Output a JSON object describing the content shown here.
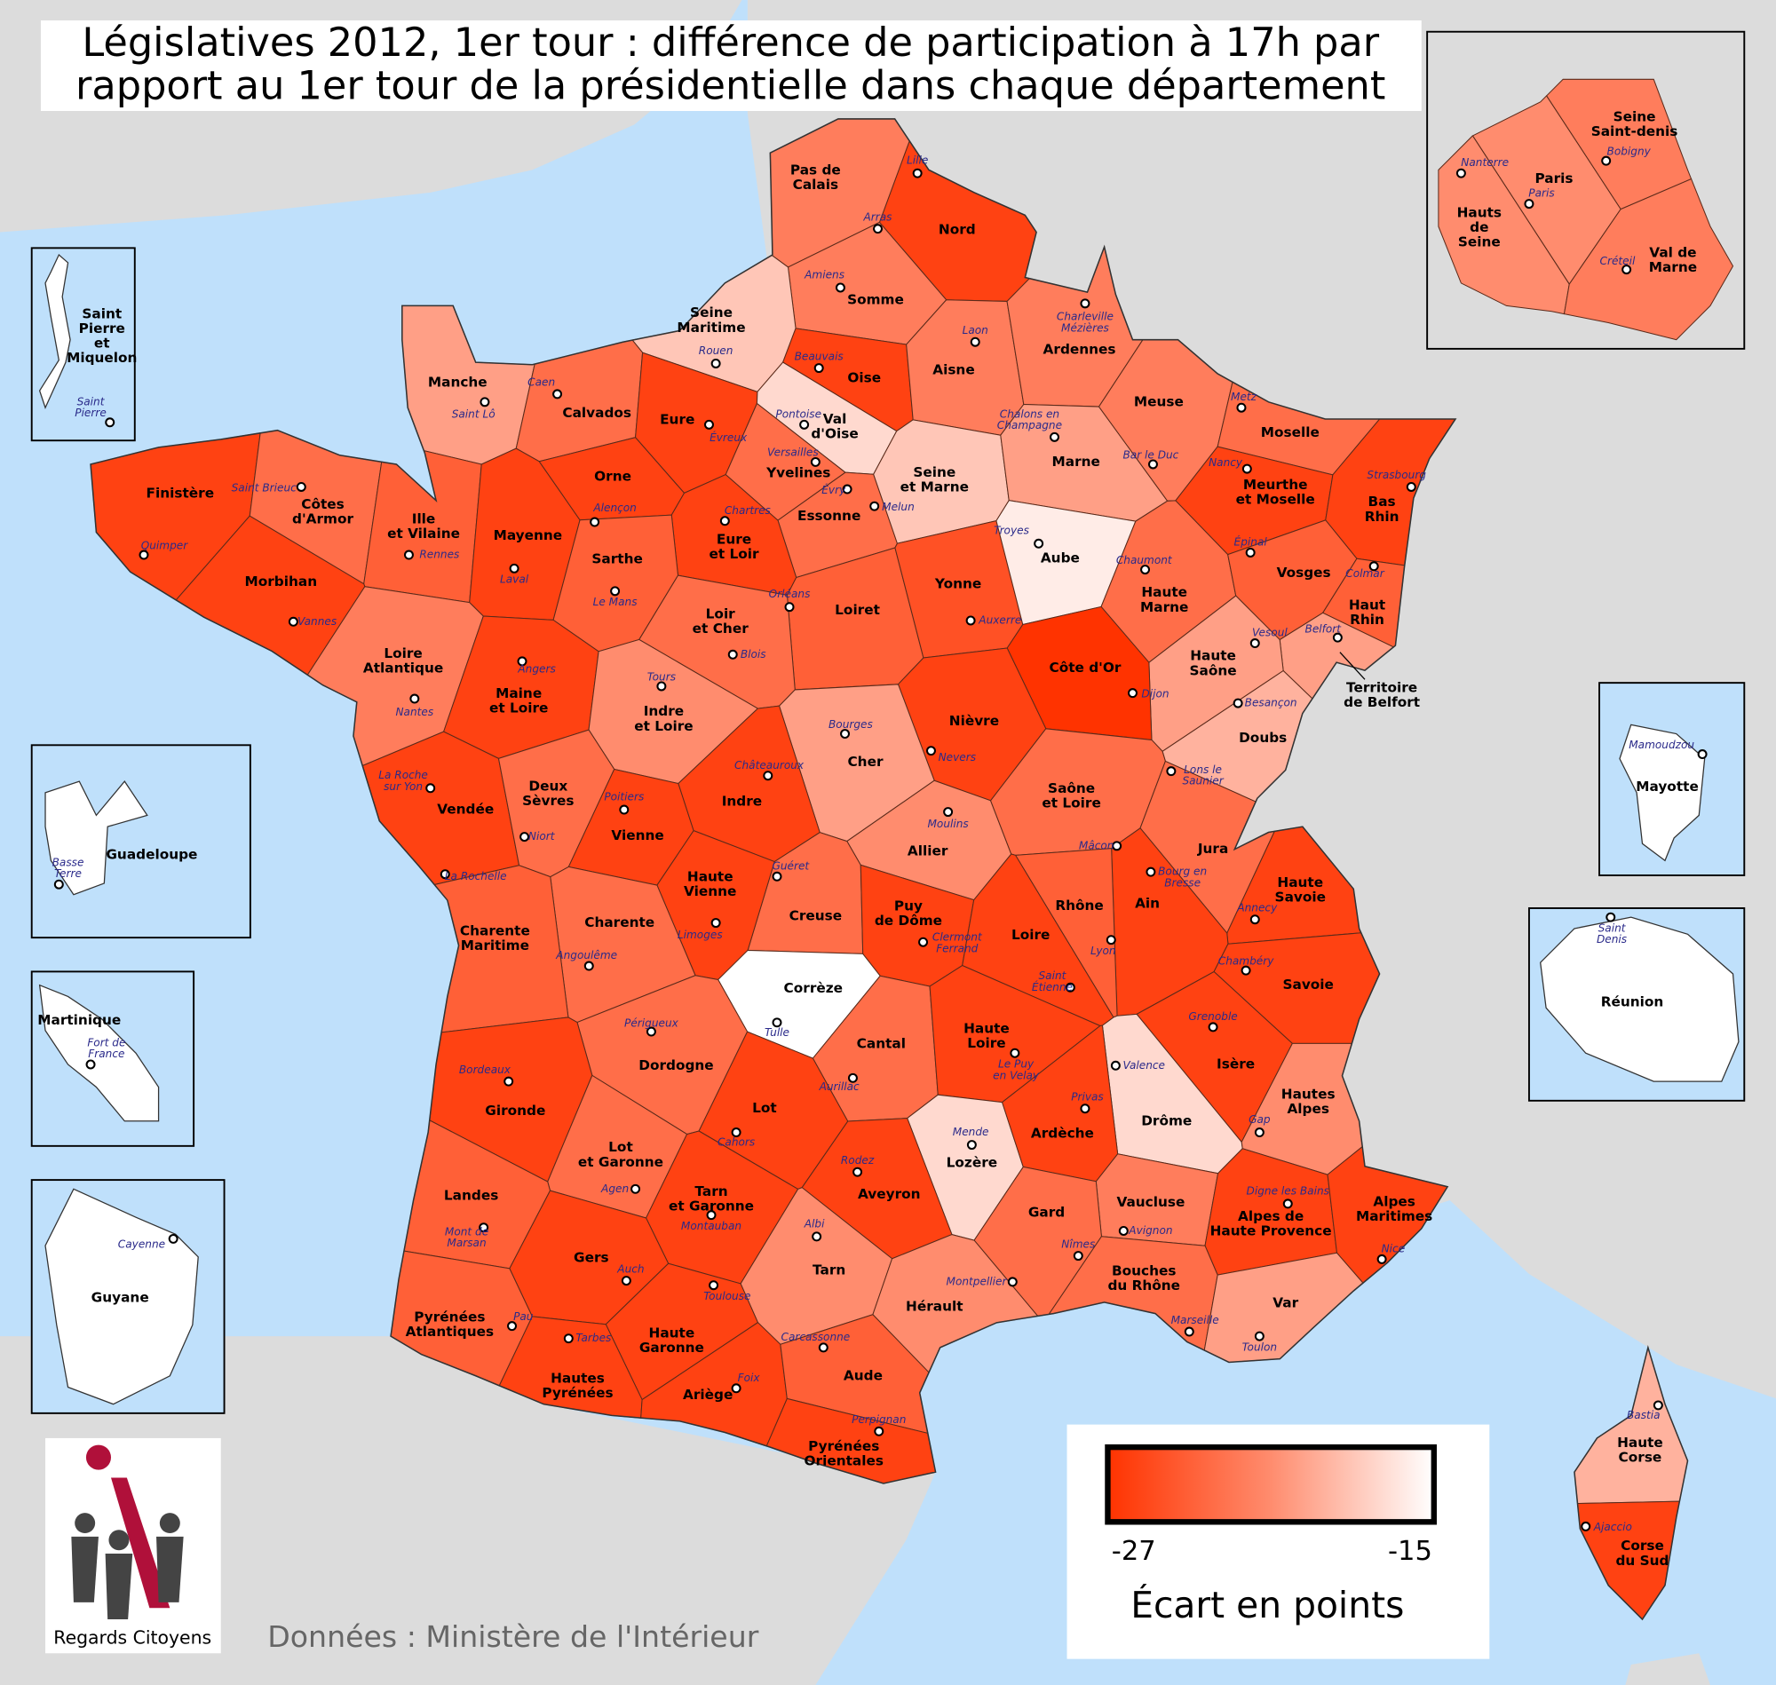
{
  "title": [
    "Législatives 2012, 1er tour : différence de participation à 17h par",
    "rapport au 1er tour de la présidentielle dans chaque département"
  ],
  "legend": {
    "title": "Écart en points",
    "min": -27,
    "max": -15,
    "colors": [
      "#ff3300",
      "#ff8c6e",
      "#ffffff"
    ]
  },
  "source": "Données : Ministère de l'Intérieur",
  "logo": "Regards Citoyens",
  "departments": [
    {
      "name": [
        "Nord"
      ],
      "prefecture": [
        "Lille"
      ],
      "value": -26
    },
    {
      "name": [
        "Pas de",
        "Calais"
      ],
      "prefecture": [
        "Arras"
      ],
      "value": -22
    },
    {
      "name": [
        "Somme"
      ],
      "prefecture": [
        "Amiens"
      ],
      "value": -22
    },
    {
      "name": [
        "Seine",
        "Maritime"
      ],
      "prefecture": [
        "Rouen"
      ],
      "value": -18
    },
    {
      "name": [
        "Oise"
      ],
      "prefecture": [
        "Beauvais"
      ],
      "value": -26
    },
    {
      "name": [
        "Aisne"
      ],
      "prefecture": [
        "Laon"
      ],
      "value": -22
    },
    {
      "name": [
        "Ardennes"
      ],
      "prefecture": [
        "Charleville",
        "Mézières"
      ],
      "value": -22
    },
    {
      "name": [
        "Manche"
      ],
      "prefecture": [
        "Saint Lô"
      ],
      "value": -20
    },
    {
      "name": [
        "Calvados"
      ],
      "prefecture": [
        "Caen"
      ],
      "value": -23
    },
    {
      "name": [
        "Eure"
      ],
      "prefecture": [
        "Évreux"
      ],
      "value": -26
    },
    {
      "name": [
        "Val",
        "d'Oise"
      ],
      "prefecture": [
        "Pontoise"
      ],
      "value": -17
    },
    {
      "name": [
        "Yvelines"
      ],
      "prefecture": [
        "Versailles"
      ],
      "value": -23
    },
    {
      "name": [
        "Essonne"
      ],
      "prefecture": [
        "Évry"
      ],
      "value": -23
    },
    {
      "name": [
        "Seine",
        "et Marne"
      ],
      "prefecture": [
        "Melun"
      ],
      "value": -18
    },
    {
      "name": [
        "Marne"
      ],
      "prefecture": [
        "Chalons en",
        "Champagne"
      ],
      "value": -20
    },
    {
      "name": [
        "Meuse"
      ],
      "prefecture": [
        "Bar le Duc"
      ],
      "value": -22
    },
    {
      "name": [
        "Moselle"
      ],
      "prefecture": [
        "Metz"
      ],
      "value": -23
    },
    {
      "name": [
        "Meurthe",
        "et Moselle"
      ],
      "prefecture": [
        "Nancy"
      ],
      "value": -26
    },
    {
      "name": [
        "Bas",
        "Rhin"
      ],
      "prefecture": [
        "Strasbourg"
      ],
      "value": -26
    },
    {
      "name": [
        "Finistère"
      ],
      "prefecture": [
        "Quimper"
      ],
      "value": -26
    },
    {
      "name": [
        "Côtes",
        "d'Armor"
      ],
      "prefecture": [
        "Saint Brieuc"
      ],
      "value": -23
    },
    {
      "name": [
        "Ille",
        "et Vilaine"
      ],
      "prefecture": [
        "Rennes"
      ],
      "value": -24
    },
    {
      "name": [
        "Mayenne"
      ],
      "prefecture": [
        "Laval"
      ],
      "value": -26
    },
    {
      "name": [
        "Orne"
      ],
      "prefecture": [
        "Alençon"
      ],
      "value": -26
    },
    {
      "name": [
        "Eure",
        "et Loir"
      ],
      "prefecture": [
        "Chartres"
      ],
      "value": -26
    },
    {
      "name": [
        "Sarthe"
      ],
      "prefecture": [
        "Le Mans"
      ],
      "value": -24
    },
    {
      "name": [
        "Morbihan"
      ],
      "prefecture": [
        "Vannes"
      ],
      "value": -26
    },
    {
      "name": [
        "Loiret"
      ],
      "prefecture": [
        "Orléans"
      ],
      "value": -24
    },
    {
      "name": [
        "Loir",
        "et Cher"
      ],
      "prefecture": [
        "Blois"
      ],
      "value": -23
    },
    {
      "name": [
        "Yonne"
      ],
      "prefecture": [
        "Auxerre"
      ],
      "value": -25
    },
    {
      "name": [
        "Aube"
      ],
      "prefecture": [
        "Troyes"
      ],
      "value": -16
    },
    {
      "name": [
        "Haute",
        "Marne"
      ],
      "prefecture": [
        "Chaumont"
      ],
      "value": -23
    },
    {
      "name": [
        "Vosges"
      ],
      "prefecture": [
        "Épinal"
      ],
      "value": -24
    },
    {
      "name": [
        "Haut",
        "Rhin"
      ],
      "prefecture": [
        "Colmar"
      ],
      "value": -24
    },
    {
      "name": [
        "Territoire",
        "de Belfort"
      ],
      "prefecture": [
        "Belfort"
      ],
      "value": -20
    },
    {
      "name": [
        "Haute",
        "Saône"
      ],
      "prefecture": [
        "Vesoul"
      ],
      "value": -20
    },
    {
      "name": [
        "Côte d'Or"
      ],
      "prefecture": [
        "Dijon"
      ],
      "value": -27
    },
    {
      "name": [
        "Doubs"
      ],
      "prefecture": [
        "Besançon"
      ],
      "value": -19
    },
    {
      "name": [
        "Loire",
        "Atlantique"
      ],
      "prefecture": [
        "Nantes"
      ],
      "value": -22
    },
    {
      "name": [
        "Maine",
        "et Loire"
      ],
      "prefecture": [
        "Angers"
      ],
      "value": -26
    },
    {
      "name": [
        "Indre",
        "et Loire"
      ],
      "prefecture": [
        "Tours"
      ],
      "value": -21
    },
    {
      "name": [
        "Nièvre"
      ],
      "prefecture": [
        "Nevers"
      ],
      "value": -26
    },
    {
      "name": [
        "Cher"
      ],
      "prefecture": [
        "Bourges"
      ],
      "value": -20
    },
    {
      "name": [
        "Vendée"
      ],
      "prefecture": [
        "La Roche",
        "sur Yon"
      ],
      "value": -26
    },
    {
      "name": [
        "Deux",
        "Sèvres"
      ],
      "prefecture": [
        "Niort"
      ],
      "value": -23
    },
    {
      "name": [
        "Vienne"
      ],
      "prefecture": [
        "Poitiers"
      ],
      "value": -26
    },
    {
      "name": [
        "Indre"
      ],
      "prefecture": [
        "Châteauroux"
      ],
      "value": -26
    },
    {
      "name": [
        "Allier"
      ],
      "prefecture": [
        "Moulins"
      ],
      "value": -21
    },
    {
      "name": [
        "Saône",
        "et Loire"
      ],
      "prefecture": [
        "Mâcon"
      ],
      "value": -23
    },
    {
      "name": [
        "Jura"
      ],
      "prefecture": [
        "Lons le",
        "Saunier"
      ],
      "value": -23
    },
    {
      "name": [
        "Haute",
        "Savoie"
      ],
      "prefecture": [
        "Annecy"
      ],
      "value": -26
    },
    {
      "name": [
        "Ain"
      ],
      "prefecture": [
        "Bourg en",
        "Bresse"
      ],
      "value": -26
    },
    {
      "name": [
        "Rhône"
      ],
      "prefecture": [
        "Lyon"
      ],
      "value": -24
    },
    {
      "name": [
        "Creuse"
      ],
      "prefecture": [
        "Guéret"
      ],
      "value": -23
    },
    {
      "name": [
        "Haute",
        "Vienne"
      ],
      "prefecture": [
        "Limoges"
      ],
      "value": -26
    },
    {
      "name": [
        "Charente"
      ],
      "prefecture": [
        "Angoulême"
      ],
      "value": -23
    },
    {
      "name": [
        "Charente",
        "Maritime"
      ],
      "prefecture": [
        "La Rochelle"
      ],
      "value": -24
    },
    {
      "name": [
        "Puy",
        "de Dôme"
      ],
      "prefecture": [
        "Clermont",
        "Ferrand"
      ],
      "value": -26
    },
    {
      "name": [
        "Loire"
      ],
      "prefecture": [
        "Saint",
        "Étienne"
      ],
      "value": -26
    },
    {
      "name": [
        "Savoie"
      ],
      "prefecture": [
        "Chambéry"
      ],
      "value": -26
    },
    {
      "name": [
        "Corrèze"
      ],
      "prefecture": [
        "Tulle"
      ],
      "value": -15
    },
    {
      "name": [
        "Dordogne"
      ],
      "prefecture": [
        "Périgueux"
      ],
      "value": -23
    },
    {
      "name": [
        "Cantal"
      ],
      "prefecture": [
        "Aurillac"
      ],
      "value": -23
    },
    {
      "name": [
        "Haute",
        "Loire"
      ],
      "prefecture": [
        "Le Puy",
        "en Velay"
      ],
      "value": -26
    },
    {
      "name": [
        "Isère"
      ],
      "prefecture": [
        "Grenoble"
      ],
      "value": -26
    },
    {
      "name": [
        "Drôme"
      ],
      "prefecture": [
        "Valence"
      ],
      "value": -17
    },
    {
      "name": [
        "Hautes",
        "Alpes"
      ],
      "prefecture": [
        "Gap"
      ],
      "value": -21
    },
    {
      "name": [
        "Gironde"
      ],
      "prefecture": [
        "Bordeaux"
      ],
      "value": -26
    },
    {
      "name": [
        "Lot"
      ],
      "prefecture": [
        "Cahors"
      ],
      "value": -26
    },
    {
      "name": [
        "Lozère"
      ],
      "prefecture": [
        "Mende"
      ],
      "value": -17
    },
    {
      "name": [
        "Ardèche"
      ],
      "prefecture": [
        "Privas"
      ],
      "value": -26
    },
    {
      "name": [
        "Lot",
        "et Garonne"
      ],
      "prefecture": [
        "Agen"
      ],
      "value": -23
    },
    {
      "name": [
        "Aveyron"
      ],
      "prefecture": [
        "Rodez"
      ],
      "value": -26
    },
    {
      "name": [
        "Landes"
      ],
      "prefecture": [
        "Mont de",
        "Marsan"
      ],
      "value": -24
    },
    {
      "name": [
        "Tarn",
        "et Garonne"
      ],
      "prefecture": [
        "Montauban"
      ],
      "value": -26
    },
    {
      "name": [
        "Vaucluse"
      ],
      "prefecture": [
        "Avignon"
      ],
      "value": -22
    },
    {
      "name": [
        "Alpes de",
        "Haute Provence"
      ],
      "prefecture": [
        "Digne les Bains"
      ],
      "value": -26
    },
    {
      "name": [
        "Alpes",
        "Maritimes"
      ],
      "prefecture": [
        "Nice"
      ],
      "value": -26
    },
    {
      "name": [
        "Gers"
      ],
      "prefecture": [
        "Auch"
      ],
      "value": -26
    },
    {
      "name": [
        "Tarn"
      ],
      "prefecture": [
        "Albi"
      ],
      "value": -21
    },
    {
      "name": [
        "Gard"
      ],
      "prefecture": [
        "Nîmes"
      ],
      "value": -23
    },
    {
      "name": [
        "Hérault"
      ],
      "prefecture": [
        "Montpellier"
      ],
      "value": -21
    },
    {
      "name": [
        "Bouches",
        "du Rhône"
      ],
      "prefecture": [
        "Marseille"
      ],
      "value": -23
    },
    {
      "name": [
        "Var"
      ],
      "prefecture": [
        "Toulon"
      ],
      "value": -20
    },
    {
      "name": [
        "Pyrénées",
        "Atlantiques"
      ],
      "prefecture": [
        "Pau"
      ],
      "value": -24
    },
    {
      "name": [
        "Haute",
        "Garonne"
      ],
      "prefecture": [
        "Toulouse"
      ],
      "value": -26
    },
    {
      "name": [
        "Hautes",
        "Pyrénées"
      ],
      "prefecture": [
        "Tarbes"
      ],
      "value": -26
    },
    {
      "name": [
        "Ariège"
      ],
      "prefecture": [
        "Foix"
      ],
      "value": -26
    },
    {
      "name": [
        "Aude"
      ],
      "prefecture": [
        "Carcassonne"
      ],
      "value": -24
    },
    {
      "name": [
        "Pyrénées",
        "Orientales"
      ],
      "prefecture": [
        "Perpignan"
      ],
      "value": -26
    },
    {
      "name": [
        "Haute",
        "Corse"
      ],
      "prefecture": [
        "Bastia"
      ],
      "value": -19
    },
    {
      "name": [
        "Corse",
        "du Sud"
      ],
      "prefecture": [
        "Ajaccio"
      ],
      "value": -26
    },
    {
      "name": [
        "Seine",
        "Saint-denis"
      ],
      "prefecture": [
        "Bobigny"
      ],
      "value": -22
    },
    {
      "name": [
        "Paris"
      ],
      "prefecture": [
        "Paris"
      ],
      "value": -21
    },
    {
      "name": [
        "Hauts",
        "de",
        "Seine"
      ],
      "prefecture": [
        "Nanterre"
      ],
      "value": -21
    },
    {
      "name": [
        "Val de",
        "Marne"
      ],
      "prefecture": [
        "Créteil"
      ],
      "value": -22
    }
  ],
  "overseas": [
    {
      "name": [
        "Saint",
        "Pierre",
        "et",
        "Miquelon"
      ],
      "city": [
        "Saint",
        "Pierre"
      ]
    },
    {
      "name": [
        "Guadeloupe"
      ],
      "city": [
        "Basse",
        "Terre"
      ]
    },
    {
      "name": [
        "Martinique"
      ],
      "city": [
        "Fort de",
        "France"
      ]
    },
    {
      "name": [
        "Guyane"
      ],
      "city": [
        "Cayenne"
      ]
    },
    {
      "name": [
        "Mayotte"
      ],
      "city": [
        "Mamoudzou"
      ]
    },
    {
      "name": [
        "Réunion"
      ],
      "city": [
        "Saint",
        "Denis"
      ]
    }
  ]
}
